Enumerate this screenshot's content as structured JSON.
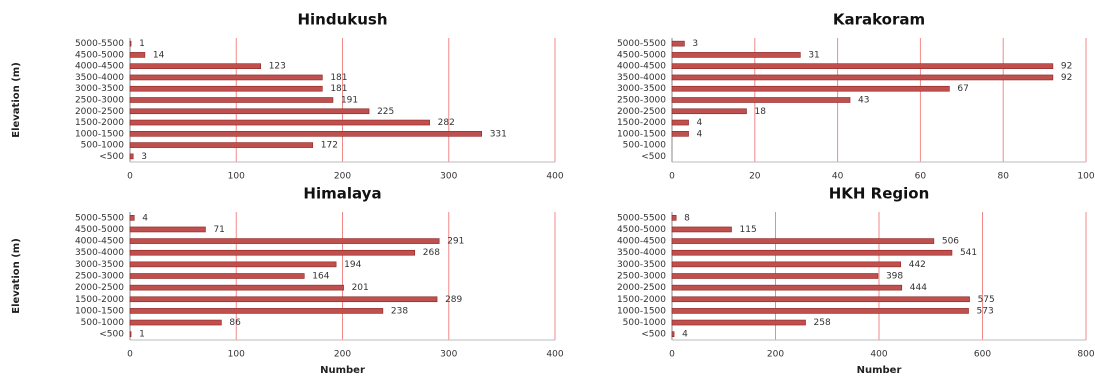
{
  "chart_data": [
    {
      "type": "bar",
      "orientation": "horizontal",
      "title": "Hindukush",
      "ylabel": "Elevation (m)",
      "categories": [
        "5000-5500",
        "4500-5000",
        "4000-4500",
        "3500-4000",
        "3000-3500",
        "2500-3000",
        "2000-2500",
        "1500-2000",
        "1000-1500",
        "500-1000",
        "<500"
      ],
      "values": [
        1,
        14,
        123,
        181,
        181,
        191,
        225,
        282,
        331,
        172,
        3
      ],
      "color": "#c0504d",
      "xlim": [
        0,
        400
      ],
      "xticks": [
        0,
        100,
        200,
        300,
        400
      ],
      "grid": true
    },
    {
      "type": "bar",
      "orientation": "horizontal",
      "title": "Karakoram",
      "categories": [
        "5000-5500",
        "4500-5000",
        "4000-4500",
        "3500-4000",
        "3000-3500",
        "2500-3000",
        "2000-2500",
        "1500-2000",
        "1000-1500",
        "500-1000",
        "<500"
      ],
      "values": [
        3,
        31,
        92,
        92,
        67,
        43,
        18,
        4,
        4,
        null,
        null
      ],
      "color": "#c0504d",
      "xlim": [
        0,
        100
      ],
      "xticks": [
        0,
        20,
        40,
        60,
        80,
        100
      ],
      "grid": true
    },
    {
      "type": "bar",
      "orientation": "horizontal",
      "title": "Himalaya",
      "ylabel": "Elevation (m)",
      "xlabel": "Number",
      "categories": [
        "5000-5500",
        "4500-5000",
        "4000-4500",
        "3500-4000",
        "3000-3500",
        "2500-3000",
        "2000-2500",
        "1500-2000",
        "1000-1500",
        "500-1000",
        "<500"
      ],
      "values": [
        4,
        71,
        291,
        268,
        194,
        164,
        201,
        289,
        238,
        86,
        1
      ],
      "color": "#c0504d",
      "xlim": [
        0,
        400
      ],
      "xticks": [
        0,
        100,
        200,
        300,
        400
      ],
      "grid": true
    },
    {
      "type": "bar",
      "orientation": "horizontal",
      "title": "HKH Region",
      "xlabel": "Number",
      "categories": [
        "5000-5500",
        "4500-5000",
        "4000-4500",
        "3500-4000",
        "3000-3500",
        "2500-3000",
        "2000-2500",
        "1500-2000",
        "1000-1500",
        "500-1000",
        "<500"
      ],
      "values": [
        8,
        115,
        506,
        541,
        442,
        398,
        444,
        575,
        573,
        258,
        4
      ],
      "color": "#c0504d",
      "xlim": [
        0,
        800
      ],
      "xticks": [
        0,
        200,
        400,
        600,
        800
      ],
      "grid": true
    }
  ]
}
